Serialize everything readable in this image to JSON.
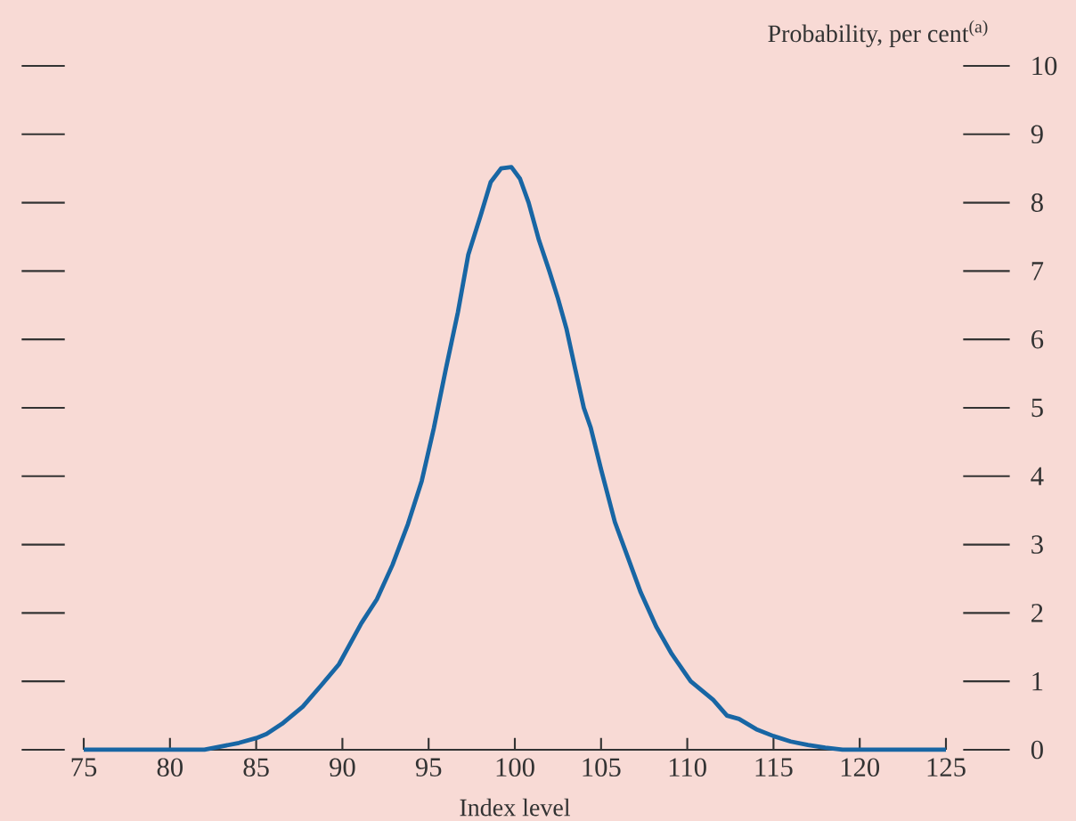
{
  "chart_data": {
    "type": "line",
    "xlabel": "Index level",
    "ylabel": "Probability, per cent$^{(a)}$",
    "x": [
      75,
      80,
      82,
      83,
      84,
      85,
      85.6,
      86.5,
      87.7,
      88.8,
      89.8,
      91.1,
      92,
      92.9,
      93.8,
      94.6,
      95.3,
      96,
      96.7,
      97.3,
      98,
      98.6,
      99.2,
      99.8,
      100.3,
      100.8,
      101.4,
      102,
      102.5,
      103,
      103.5,
      104,
      104.4,
      105,
      105.8,
      106.5,
      107.3,
      108.2,
      109.1,
      110.2,
      111.5,
      112.3,
      113,
      114,
      115,
      116,
      117,
      118,
      119,
      125
    ],
    "series": [
      {
        "color": "#1866a4",
        "values": [
          0,
          0,
          0,
          0.05,
          0.1,
          0.17,
          0.23,
          0.38,
          0.63,
          0.95,
          1.25,
          1.85,
          2.2,
          2.7,
          3.3,
          3.93,
          4.7,
          5.57,
          6.4,
          7.24,
          7.8,
          8.3,
          8.5,
          8.52,
          8.35,
          8.0,
          7.45,
          7.0,
          6.6,
          6.15,
          5.57,
          5.0,
          4.71,
          4.1,
          3.33,
          2.85,
          2.3,
          1.8,
          1.4,
          1.0,
          0.73,
          0.5,
          0.45,
          0.3,
          0.2,
          0.12,
          0.07,
          0.03,
          0,
          0
        ]
      }
    ],
    "xlim": [
      75,
      125
    ],
    "ylim": [
      0,
      10
    ],
    "xticks": [
      75,
      80,
      85,
      90,
      95,
      100,
      105,
      110,
      115,
      120,
      125
    ],
    "yticks": [
      0,
      1,
      2,
      3,
      4,
      5,
      6,
      7,
      8,
      9,
      10
    ],
    "line_style": "solid"
  }
}
